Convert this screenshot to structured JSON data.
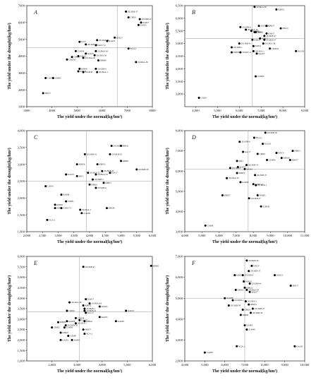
{
  "chart_data": [
    {
      "type": "scatter",
      "panel": "A",
      "xlabel": "The yield under the normal(kg/hm²)",
      "ylabel": "The yield under the drought(kg/hm²)",
      "xlim": [
        3000,
        8000
      ],
      "ylim": [
        1000,
        7000
      ],
      "xticks": [
        "3000",
        "4000",
        "5000",
        "6000",
        "7000",
        "8000"
      ],
      "yticks": [
        "1000",
        "2000",
        "3000",
        "4000",
        "5000",
        "6000",
        "7000"
      ],
      "ref_x": 6600,
      "ref_y": 4500,
      "points": [
        {
          "label": "2013KB-37",
          "x": 6950,
          "y": 6650
        },
        {
          "label": "2013KB-47",
          "x": 7500,
          "y": 6200
        },
        {
          "label": "CR001",
          "x": 7050,
          "y": 6300
        },
        {
          "label": "KA017",
          "x": 7550,
          "y": 6000
        },
        {
          "label": "KA025",
          "x": 7450,
          "y": 5850
        },
        {
          "label": "KA017",
          "x": 6500,
          "y": 5100
        },
        {
          "label": "2013KB-36",
          "x": 5800,
          "y": 4950
        },
        {
          "label": "KA025",
          "x": 6200,
          "y": 4900
        },
        {
          "label": "K277",
          "x": 5100,
          "y": 4850
        },
        {
          "label": "2013KB-41",
          "x": 5350,
          "y": 4700
        },
        {
          "label": "ZA017-2",
          "x": 5750,
          "y": 4650
        },
        {
          "label": "NCA-1",
          "x": 7050,
          "y": 4450
        },
        {
          "label": "Z14038",
          "x": 4950,
          "y": 4300
        },
        {
          "label": "2013KA-34",
          "x": 5750,
          "y": 4300
        },
        {
          "label": "KA037",
          "x": 5350,
          "y": 4150
        },
        {
          "label": "K8010",
          "x": 5050,
          "y": 4000
        },
        {
          "label": "2013KA-56",
          "x": 5700,
          "y": 4050
        },
        {
          "label": "CR002",
          "x": 4800,
          "y": 3950
        },
        {
          "label": "2013KA-58",
          "x": 5250,
          "y": 3900
        },
        {
          "label": "CR0032",
          "x": 4600,
          "y": 3800
        },
        {
          "label": "KB006",
          "x": 5850,
          "y": 3750
        },
        {
          "label": "2013KA-36",
          "x": 7350,
          "y": 3650
        },
        {
          "label": "K8009",
          "x": 5100,
          "y": 3250
        },
        {
          "label": "2013ZB-6",
          "x": 5750,
          "y": 3250
        },
        {
          "label": "KA225",
          "x": 5050,
          "y": 3100
        },
        {
          "label": "2014038",
          "x": 5250,
          "y": 3050
        },
        {
          "label": "2013KA-1",
          "x": 5800,
          "y": 3050
        },
        {
          "label": "CA001",
          "x": 3750,
          "y": 2700
        },
        {
          "label": "CR065",
          "x": 4050,
          "y": 2700
        },
        {
          "label": "HNCV",
          "x": 3650,
          "y": 1800
        }
      ]
    },
    {
      "type": "scatter",
      "panel": "B",
      "xlabel": "The yield under the normal(kg/hm²)",
      "ylabel": "The yield under the drought(kg/hm²)",
      "xlim": [
        3500,
        9000
      ],
      "ylim": [
        2500,
        6500
      ],
      "xticks": [
        "4,000",
        "5,000",
        "6,000",
        "7,000",
        "8,000",
        "9,000"
      ],
      "yticks": [
        "3,000",
        "3,500",
        "4,000",
        "4,500",
        "5,000",
        "5,500",
        "6,000",
        "6,500"
      ],
      "ref_x": 6600,
      "ref_y": 5200,
      "points": [
        {
          "label": "2013KA-36",
          "x": 6700,
          "y": 6450
        },
        {
          "label": "KB001",
          "x": 7700,
          "y": 6350
        },
        {
          "label": "2013KA-27",
          "x": 6900,
          "y": 5700
        },
        {
          "label": "KA017",
          "x": 7250,
          "y": 5700
        },
        {
          "label": "2013ZB-6",
          "x": 6050,
          "y": 5650
        },
        {
          "label": "2013KA-34",
          "x": 6300,
          "y": 5550
        },
        {
          "label": "CA027",
          "x": 6550,
          "y": 5500
        },
        {
          "label": "PB001",
          "x": 6700,
          "y": 5450
        },
        {
          "label": "PB002",
          "x": 6750,
          "y": 5450
        },
        {
          "label": "KA017",
          "x": 7250,
          "y": 5400
        },
        {
          "label": "2013KB-47",
          "x": 7150,
          "y": 5300
        },
        {
          "label": "HNCV",
          "x": 7900,
          "y": 5600
        },
        {
          "label": "KA017",
          "x": 6950,
          "y": 5200
        },
        {
          "label": "2013KB-37",
          "x": 7150,
          "y": 5150
        },
        {
          "label": "KB022",
          "x": 6600,
          "y": 5150
        },
        {
          "label": "2013KB-41",
          "x": 6000,
          "y": 5000
        },
        {
          "label": "2013KA-58",
          "x": 7100,
          "y": 5000
        },
        {
          "label": "K2014",
          "x": 6650,
          "y": 4900
        },
        {
          "label": "2013KB-1",
          "x": 5650,
          "y": 4850
        },
        {
          "label": "K8009",
          "x": 5650,
          "y": 4650
        },
        {
          "label": "2014017-5",
          "x": 6050,
          "y": 4650
        },
        {
          "label": "2013KA-1",
          "x": 6650,
          "y": 4700
        },
        {
          "label": "KA017",
          "x": 6800,
          "y": 4600
        },
        {
          "label": "CR0033",
          "x": 7400,
          "y": 4800
        },
        {
          "label": "KA193",
          "x": 8600,
          "y": 4700
        },
        {
          "label": "Z14090",
          "x": 6750,
          "y": 3700
        },
        {
          "label": "CA001",
          "x": 4150,
          "y": 2850
        }
      ]
    },
    {
      "type": "scatter",
      "panel": "C",
      "xlabel": "The yield under the normal(kg/hm²)",
      "ylabel": "The yield under the drought(kg/hm²)",
      "xlim": [
        2000,
        6000
      ],
      "ylim": [
        1000,
        4000
      ],
      "xticks": [
        "2,000",
        "2,500",
        "3,000",
        "3,500",
        "4,000",
        "4,500",
        "5,000",
        "5,500",
        "6,000"
      ],
      "yticks": [
        "1,000",
        "1,500",
        "2,000",
        "2,500",
        "3,000",
        "3,500",
        "4,000"
      ],
      "ref_x": 3900,
      "ref_y": 2500,
      "points": [
        {
          "label": "2013KB-47",
          "x": 4700,
          "y": 3550
        },
        {
          "label": "KB011",
          "x": 5000,
          "y": 3550
        },
        {
          "label": "2013KB-41",
          "x": 3850,
          "y": 3300
        },
        {
          "label": "2013KB-50",
          "x": 4650,
          "y": 3300
        },
        {
          "label": "KB001",
          "x": 5000,
          "y": 3100
        },
        {
          "label": "KB026",
          "x": 3600,
          "y": 3000
        },
        {
          "label": "KB013",
          "x": 4250,
          "y": 3000
        },
        {
          "label": "2013KB-47",
          "x": 4400,
          "y": 2800
        },
        {
          "label": "KB-17",
          "x": 4650,
          "y": 2750
        },
        {
          "label": "2013KA-32",
          "x": 3950,
          "y": 2750
        },
        {
          "label": "2013KA-33",
          "x": 4200,
          "y": 2700
        },
        {
          "label": "KA225",
          "x": 3250,
          "y": 2700
        },
        {
          "label": "KB-1",
          "x": 3600,
          "y": 2650
        },
        {
          "label": "2013KB-5",
          "x": 4100,
          "y": 2550
        },
        {
          "label": "KB017",
          "x": 4450,
          "y": 2450
        },
        {
          "label": "2013KB-58",
          "x": 5500,
          "y": 2850
        },
        {
          "label": "KB001",
          "x": 4000,
          "y": 2400
        },
        {
          "label": "2013ZB-6",
          "x": 4200,
          "y": 2300
        },
        {
          "label": "CA001",
          "x": 2600,
          "y": 2350
        },
        {
          "label": "KA008",
          "x": 3100,
          "y": 2100
        },
        {
          "label": "CR001",
          "x": 3250,
          "y": 1900
        },
        {
          "label": "K8009",
          "x": 2900,
          "y": 1800
        },
        {
          "label": "Z10017-5",
          "x": 3100,
          "y": 1700
        },
        {
          "label": "K8026",
          "x": 2900,
          "y": 1700
        },
        {
          "label": "2013KA-1",
          "x": 3700,
          "y": 1650
        },
        {
          "label": "Z14038",
          "x": 3750,
          "y": 1550
        },
        {
          "label": "KB180",
          "x": 4550,
          "y": 1700
        },
        {
          "label": "NCA-1",
          "x": 2650,
          "y": 1350
        }
      ]
    },
    {
      "type": "scatter",
      "panel": "D",
      "xlabel": "The yield under the normal(kg/hm²)",
      "ylabel": "The yield under the drought(kg/hm²)",
      "xlim": [
        4000,
        11000
      ],
      "ylim": [
        3000,
        8000
      ],
      "xticks": [
        "4,000",
        "5,000",
        "6,000",
        "7,000",
        "8,000",
        "9,000",
        "10,000",
        "11,000"
      ],
      "yticks": [
        "3,000",
        "4,000",
        "5,000",
        "6,000",
        "7,000",
        "8,000"
      ],
      "ref_x": 7700,
      "ref_y": 6100,
      "points": [
        {
          "label": "2013KB-58",
          "x": 8700,
          "y": 7900
        },
        {
          "label": "NCA-1",
          "x": 8050,
          "y": 7650
        },
        {
          "label": "2013ZB-6",
          "x": 7200,
          "y": 7450
        },
        {
          "label": "KA203",
          "x": 8550,
          "y": 7350
        },
        {
          "label": "KB015",
          "x": 10300,
          "y": 7000
        },
        {
          "label": "KA-17",
          "x": 7400,
          "y": 6950
        },
        {
          "label": "CR001",
          "x": 8250,
          "y": 6850
        },
        {
          "label": "HNCV",
          "x": 9350,
          "y": 6900
        },
        {
          "label": "KB026",
          "x": 9650,
          "y": 6650
        },
        {
          "label": "KB017",
          "x": 10150,
          "y": 6550
        },
        {
          "label": "Z14090",
          "x": 8800,
          "y": 6550
        },
        {
          "label": "KB-1",
          "x": 7050,
          "y": 6500
        },
        {
          "label": "2013KB-41",
          "x": 7600,
          "y": 6300
        },
        {
          "label": "2013KB-1",
          "x": 6650,
          "y": 6150
        },
        {
          "label": "KA025",
          "x": 7100,
          "y": 6200
        },
        {
          "label": "KA001",
          "x": 7500,
          "y": 6100
        },
        {
          "label": "2013KA-34",
          "x": 6450,
          "y": 5650
        },
        {
          "label": "KB023",
          "x": 7050,
          "y": 5900
        },
        {
          "label": "2013KB-37",
          "x": 8100,
          "y": 5800
        },
        {
          "label": "KA006",
          "x": 7250,
          "y": 5450
        },
        {
          "label": "Z10017-5",
          "x": 8000,
          "y": 5350
        },
        {
          "label": "2013KA-1",
          "x": 8150,
          "y": 5300
        },
        {
          "label": "KB027",
          "x": 6200,
          "y": 4800
        },
        {
          "label": "KA005",
          "x": 8250,
          "y": 4800
        },
        {
          "label": "2013KB-47",
          "x": 7750,
          "y": 4650
        },
        {
          "label": "Z14038",
          "x": 8450,
          "y": 4250
        },
        {
          "label": "CA008",
          "x": 5200,
          "y": 3300
        }
      ]
    },
    {
      "type": "scatter",
      "panel": "E",
      "xlabel": "The yield under the normal(kg/hm²)",
      "ylabel": "The yield under the drought(kg/hm²)",
      "xlim": [
        1000,
        6000
      ],
      "ylim": [
        1000,
        6000
      ],
      "xticks": [
        "2,000",
        "3,000",
        "4,000",
        "5,000",
        "6,000"
      ],
      "yticks": [
        "1,000",
        "1,500",
        "2,000",
        "2,500",
        "3,000",
        "3,500",
        "4,000",
        "4,500",
        "5,000",
        "5,500",
        "6,000"
      ],
      "ref_x": 3100,
      "ref_y": 3350,
      "points": [
        {
          "label": "2013KB-47",
          "x": 3250,
          "y": 5500
        },
        {
          "label": "KB001",
          "x": 5950,
          "y": 5550
        },
        {
          "label": "KA017",
          "x": 3350,
          "y": 3950
        },
        {
          "label": "2013KA-36",
          "x": 2700,
          "y": 3800
        },
        {
          "label": "2013KA-34",
          "x": 3500,
          "y": 3750
        },
        {
          "label": "KA025",
          "x": 3900,
          "y": 3600
        },
        {
          "label": "KB032",
          "x": 3250,
          "y": 3650
        },
        {
          "label": "2013KB-1",
          "x": 3300,
          "y": 3500
        },
        {
          "label": "2013KB-41",
          "x": 3300,
          "y": 3400
        },
        {
          "label": "KA-17",
          "x": 3350,
          "y": 3300
        },
        {
          "label": "KA001",
          "x": 4950,
          "y": 3400
        },
        {
          "label": "CR001",
          "x": 2600,
          "y": 3400
        },
        {
          "label": "KA025",
          "x": 3900,
          "y": 3100
        },
        {
          "label": "Z14038",
          "x": 2950,
          "y": 3050
        },
        {
          "label": "KA227",
          "x": 3100,
          "y": 2950
        },
        {
          "label": "KB022",
          "x": 3300,
          "y": 2900
        },
        {
          "label": "KA009",
          "x": 4550,
          "y": 2900
        },
        {
          "label": "2013KA-1",
          "x": 2950,
          "y": 2800
        },
        {
          "label": "2013KB-58",
          "x": 2550,
          "y": 2700
        },
        {
          "label": "K8009",
          "x": 2250,
          "y": 2850
        },
        {
          "label": "KA008",
          "x": 2600,
          "y": 2900
        },
        {
          "label": "Z14090",
          "x": 2500,
          "y": 2600
        },
        {
          "label": "CR002",
          "x": 2000,
          "y": 2600
        },
        {
          "label": "HNCV",
          "x": 3250,
          "y": 2500
        },
        {
          "label": "NCA-1",
          "x": 3300,
          "y": 2300
        },
        {
          "label": "KB027",
          "x": 2350,
          "y": 2350
        },
        {
          "label": "CA008",
          "x": 2650,
          "y": 2200
        },
        {
          "label": "CA001",
          "x": 2350,
          "y": 2000
        },
        {
          "label": "KA005",
          "x": 2800,
          "y": 2000
        }
      ]
    },
    {
      "type": "scatter",
      "panel": "F",
      "xlabel": "The yield under the normal(kg/hm²)",
      "ylabel": "The yield under the drought(kg/hm²)",
      "xlim": [
        4000,
        10000
      ],
      "ylim": [
        2000,
        7000
      ],
      "xticks": [
        "4,000",
        "5,000",
        "6,000",
        "7,000",
        "8,000",
        "9,000",
        "10,000"
      ],
      "yticks": [
        "2,000",
        "3,000",
        "4,000",
        "5,000",
        "6,000",
        "7,000"
      ],
      "ref_x": 7000,
      "ref_y": 5000,
      "points": [
        {
          "label": "2013KB-56",
          "x": 7100,
          "y": 6800
        },
        {
          "label": "HNCV",
          "x": 7350,
          "y": 6550
        },
        {
          "label": "2013KB-37",
          "x": 7200,
          "y": 6300
        },
        {
          "label": "KA017",
          "x": 6500,
          "y": 6100
        },
        {
          "label": "2013ZB-6",
          "x": 6900,
          "y": 6100
        },
        {
          "label": "KA013",
          "x": 8500,
          "y": 6100
        },
        {
          "label": "KA025",
          "x": 6950,
          "y": 5800
        },
        {
          "label": "2013KB-41",
          "x": 7250,
          "y": 5700
        },
        {
          "label": "HNCV",
          "x": 9300,
          "y": 5600
        },
        {
          "label": "KB022",
          "x": 7000,
          "y": 5500
        },
        {
          "label": "2013KA-34",
          "x": 7100,
          "y": 5400
        },
        {
          "label": "KB032",
          "x": 6550,
          "y": 5400
        },
        {
          "label": "KA017",
          "x": 7250,
          "y": 5300
        },
        {
          "label": "Z14038",
          "x": 6000,
          "y": 5000
        },
        {
          "label": "2013KB-1",
          "x": 6400,
          "y": 4900
        },
        {
          "label": "2013KA-5",
          "x": 7050,
          "y": 4850
        },
        {
          "label": "2013KB-58",
          "x": 6200,
          "y": 4650
        },
        {
          "label": "KB001",
          "x": 7200,
          "y": 4700
        },
        {
          "label": "2013KB-47",
          "x": 7400,
          "y": 4500
        },
        {
          "label": "CR001",
          "x": 6900,
          "y": 4450
        },
        {
          "label": "2013KB-36",
          "x": 7300,
          "y": 4300
        },
        {
          "label": "K8009",
          "x": 6800,
          "y": 4200
        },
        {
          "label": "KA005",
          "x": 7000,
          "y": 3700
        },
        {
          "label": "Z14090",
          "x": 7100,
          "y": 3500
        },
        {
          "label": "NCA-1",
          "x": 6600,
          "y": 2700
        },
        {
          "label": "KA193",
          "x": 9500,
          "y": 2700
        },
        {
          "label": "CA008",
          "x": 5000,
          "y": 2400
        }
      ]
    }
  ]
}
